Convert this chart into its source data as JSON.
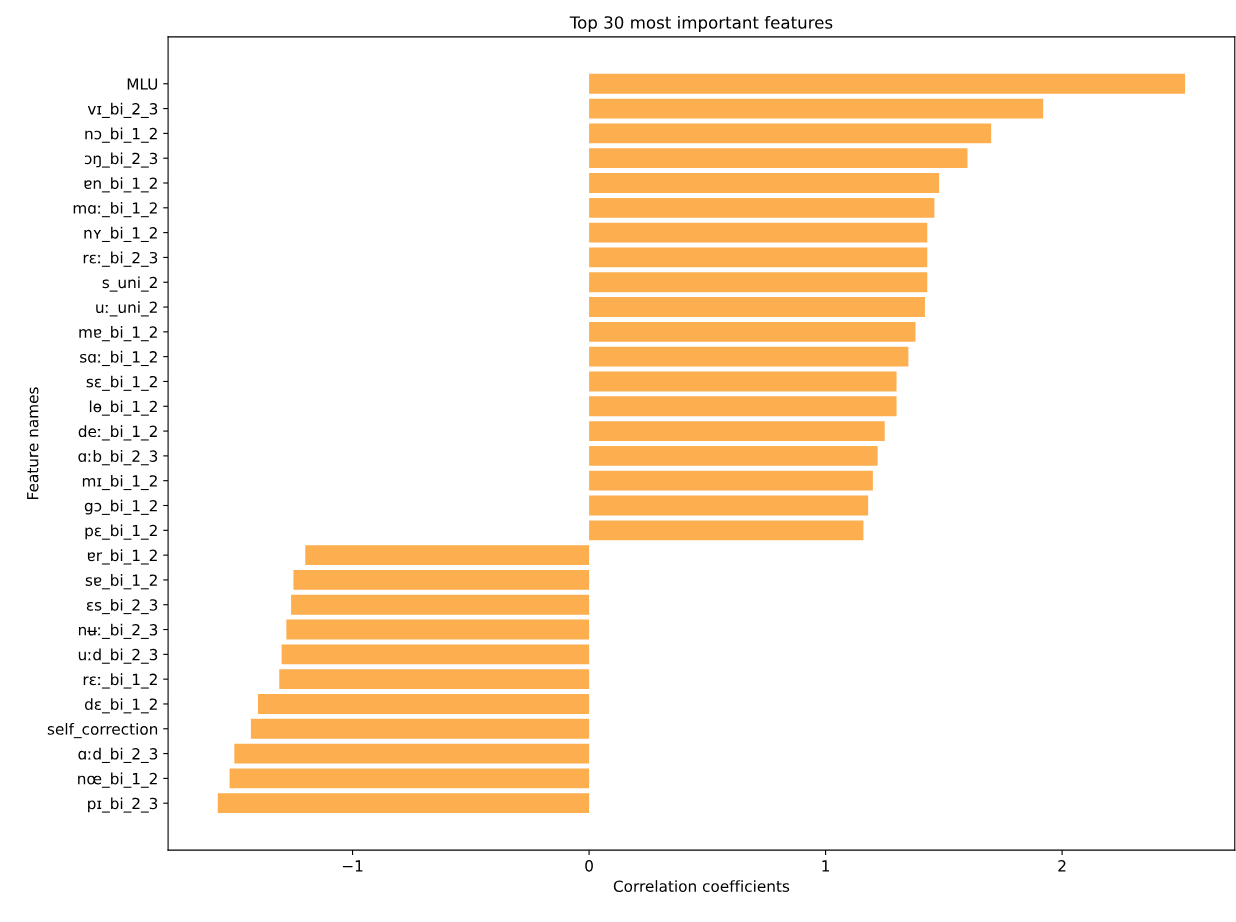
{
  "chart_data": {
    "type": "bar",
    "orientation": "horizontal",
    "title": "Top 30 most important features",
    "xlabel": "Correlation coefficients",
    "ylabel": "Feature names",
    "categories": [
      "MLU",
      "vɪ_bi_2_3",
      "nɔ_bi_1_2",
      "ɔŋ_bi_2_3",
      "ɐn_bi_1_2",
      "mɑː_bi_1_2",
      "nʏ_bi_1_2",
      "rɛː_bi_2_3",
      "s_uni_2",
      "uː_uni_2",
      "mɐ_bi_1_2",
      "sɑː_bi_1_2",
      "sɛ_bi_1_2",
      "lɵ_bi_1_2",
      "deː_bi_1_2",
      "ɑːb_bi_2_3",
      "mɪ_bi_1_2",
      "gɔ_bi_1_2",
      "pɛ_bi_1_2",
      "ɐr_bi_1_2",
      "sɐ_bi_1_2",
      "ɛs_bi_2_3",
      "nʉː_bi_2_3",
      "uːd_bi_2_3",
      "rɛː_bi_1_2",
      "dɛ_bi_1_2",
      "self_correction",
      "ɑːd_bi_2_3",
      "nœ_bi_1_2",
      "pɪ_bi_2_3"
    ],
    "values": [
      2.52,
      1.92,
      1.7,
      1.6,
      1.48,
      1.46,
      1.43,
      1.43,
      1.43,
      1.42,
      1.38,
      1.35,
      1.3,
      1.3,
      1.25,
      1.22,
      1.2,
      1.18,
      1.16,
      -1.2,
      -1.25,
      -1.26,
      -1.28,
      -1.3,
      -1.31,
      -1.4,
      -1.43,
      -1.5,
      -1.52,
      -1.57
    ],
    "color": "#fdae4e",
    "xlim": [
      -1.78,
      2.73
    ],
    "xticks": [
      {
        "value": -1,
        "label": "−1"
      },
      0,
      1,
      2
    ],
    "grid": false
  }
}
